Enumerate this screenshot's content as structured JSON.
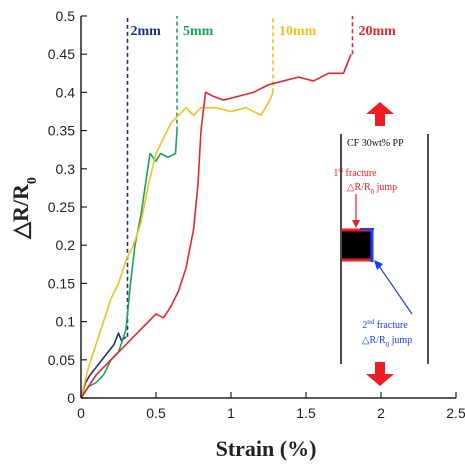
{
  "chart_data": {
    "type": "line",
    "xlabel": "Strain (%)",
    "ylabel": "△R/R",
    "ylabel_sub": "0",
    "xlim": [
      0,
      2.5
    ],
    "ylim": [
      0,
      0.5
    ],
    "xticks": [
      0,
      0.5,
      1,
      1.5,
      2,
      2.5
    ],
    "yticks": [
      0,
      0.05,
      0.1,
      0.15,
      0.2,
      0.25,
      0.3,
      0.35,
      0.4,
      0.45,
      0.5
    ],
    "xtick_labels": [
      "0",
      "0.5",
      "1",
      "1.5",
      "2",
      "2.5"
    ],
    "ytick_labels": [
      "0",
      "0.05",
      "0.1",
      "0.15",
      "0.2",
      "0.25",
      "0.3",
      "0.35",
      "0.4",
      "0.45",
      "0.5"
    ],
    "grid": false,
    "series": [
      {
        "name": "2mm",
        "color": "#1f2f7a",
        "points": [
          [
            0,
            0
          ],
          [
            0.03,
            0.02
          ],
          [
            0.06,
            0.03
          ],
          [
            0.1,
            0.04
          ],
          [
            0.14,
            0.05
          ],
          [
            0.18,
            0.06
          ],
          [
            0.22,
            0.07
          ],
          [
            0.25,
            0.085
          ],
          [
            0.27,
            0.075
          ],
          [
            0.3,
            0.08
          ]
        ],
        "fracture_strain": 0.31
      },
      {
        "name": "5mm",
        "color": "#1aa35a",
        "points": [
          [
            0,
            0
          ],
          [
            0.05,
            0.015
          ],
          [
            0.1,
            0.02
          ],
          [
            0.15,
            0.03
          ],
          [
            0.2,
            0.05
          ],
          [
            0.25,
            0.06
          ],
          [
            0.3,
            0.09
          ],
          [
            0.33,
            0.15
          ],
          [
            0.36,
            0.2
          ],
          [
            0.4,
            0.24
          ],
          [
            0.43,
            0.28
          ],
          [
            0.46,
            0.32
          ],
          [
            0.5,
            0.31
          ],
          [
            0.53,
            0.32
          ],
          [
            0.58,
            0.315
          ],
          [
            0.63,
            0.32
          ],
          [
            0.64,
            0.35
          ]
        ],
        "fracture_strain": 0.64
      },
      {
        "name": "10mm",
        "color": "#f0c020",
        "points": [
          [
            0,
            0
          ],
          [
            0.05,
            0.04
          ],
          [
            0.1,
            0.07
          ],
          [
            0.15,
            0.1
          ],
          [
            0.2,
            0.13
          ],
          [
            0.25,
            0.15
          ],
          [
            0.3,
            0.18
          ],
          [
            0.35,
            0.2
          ],
          [
            0.4,
            0.23
          ],
          [
            0.45,
            0.28
          ],
          [
            0.5,
            0.32
          ],
          [
            0.55,
            0.34
          ],
          [
            0.6,
            0.36
          ],
          [
            0.65,
            0.37
          ],
          [
            0.7,
            0.38
          ],
          [
            0.75,
            0.37
          ],
          [
            0.8,
            0.38
          ],
          [
            0.9,
            0.38
          ],
          [
            1.0,
            0.375
          ],
          [
            1.1,
            0.38
          ],
          [
            1.2,
            0.37
          ],
          [
            1.26,
            0.39
          ],
          [
            1.28,
            0.4
          ]
        ],
        "fracture_strain": 1.28
      },
      {
        "name": "20mm",
        "color": "#e8262a",
        "points": [
          [
            0,
            0
          ],
          [
            0.1,
            0.03
          ],
          [
            0.2,
            0.05
          ],
          [
            0.3,
            0.07
          ],
          [
            0.4,
            0.09
          ],
          [
            0.45,
            0.1
          ],
          [
            0.5,
            0.11
          ],
          [
            0.55,
            0.105
          ],
          [
            0.6,
            0.12
          ],
          [
            0.65,
            0.14
          ],
          [
            0.7,
            0.17
          ],
          [
            0.75,
            0.22
          ],
          [
            0.78,
            0.28
          ],
          [
            0.8,
            0.35
          ],
          [
            0.83,
            0.4
          ],
          [
            0.88,
            0.395
          ],
          [
            0.95,
            0.39
          ],
          [
            1.05,
            0.395
          ],
          [
            1.15,
            0.4
          ],
          [
            1.25,
            0.41
          ],
          [
            1.35,
            0.415
          ],
          [
            1.45,
            0.42
          ],
          [
            1.55,
            0.415
          ],
          [
            1.65,
            0.425
          ],
          [
            1.75,
            0.425
          ],
          [
            1.8,
            0.45
          ]
        ],
        "fracture_strain": 1.81
      }
    ],
    "inset": {
      "title": "CF 30wt% PP",
      "first_fracture_label": "1",
      "first_fracture_sup": "st",
      "first_fracture_rest": " fracture",
      "first_jump_label": "△R/R",
      "first_jump_sub": "0",
      "first_jump_rest": " jump",
      "second_fracture_label": "2",
      "second_fracture_sup": "nd",
      "second_fracture_rest": " fracture",
      "second_jump_label": "△R/R",
      "second_jump_sub": "0",
      "second_jump_rest": " jump",
      "first_color": "#e8262a",
      "second_color": "#1a3cff"
    }
  }
}
